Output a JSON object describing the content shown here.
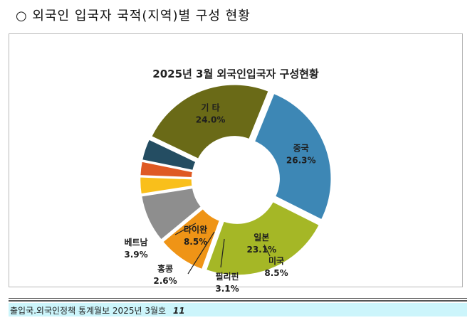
{
  "heading": "○ 외국인 입국자 국적(지역)별 구성 현황",
  "footer": {
    "source": "출입국.외국인정책 통계월보 2025년 3월호",
    "page": "11"
  },
  "chart_data": {
    "type": "pie",
    "style": "donut",
    "title": "2025년 3월 외국인입국자 구성현황",
    "unit": "%",
    "categories": [
      "중국",
      "일본",
      "타이완",
      "미국",
      "필리핀",
      "홍콩",
      "베트남",
      "기 타"
    ],
    "values": [
      26.3,
      23.1,
      8.5,
      8.5,
      3.1,
      2.6,
      3.9,
      24.0
    ],
    "labels": [
      "26.3%",
      "23.1%",
      "8.5%",
      "8.5%",
      "3.1%",
      "2.6%",
      "3.9%",
      "24.0%"
    ],
    "colors": [
      "#3d87b5",
      "#a5b726",
      "#ef9416",
      "#8e8e8e",
      "#f9bf1b",
      "#df5a24",
      "#244d62",
      "#6a6a17"
    ],
    "label_placement": [
      "inside",
      "inside",
      "inside",
      "outside",
      "outside",
      "outside",
      "outside",
      "inside"
    ],
    "grid": false,
    "legend": "none"
  }
}
